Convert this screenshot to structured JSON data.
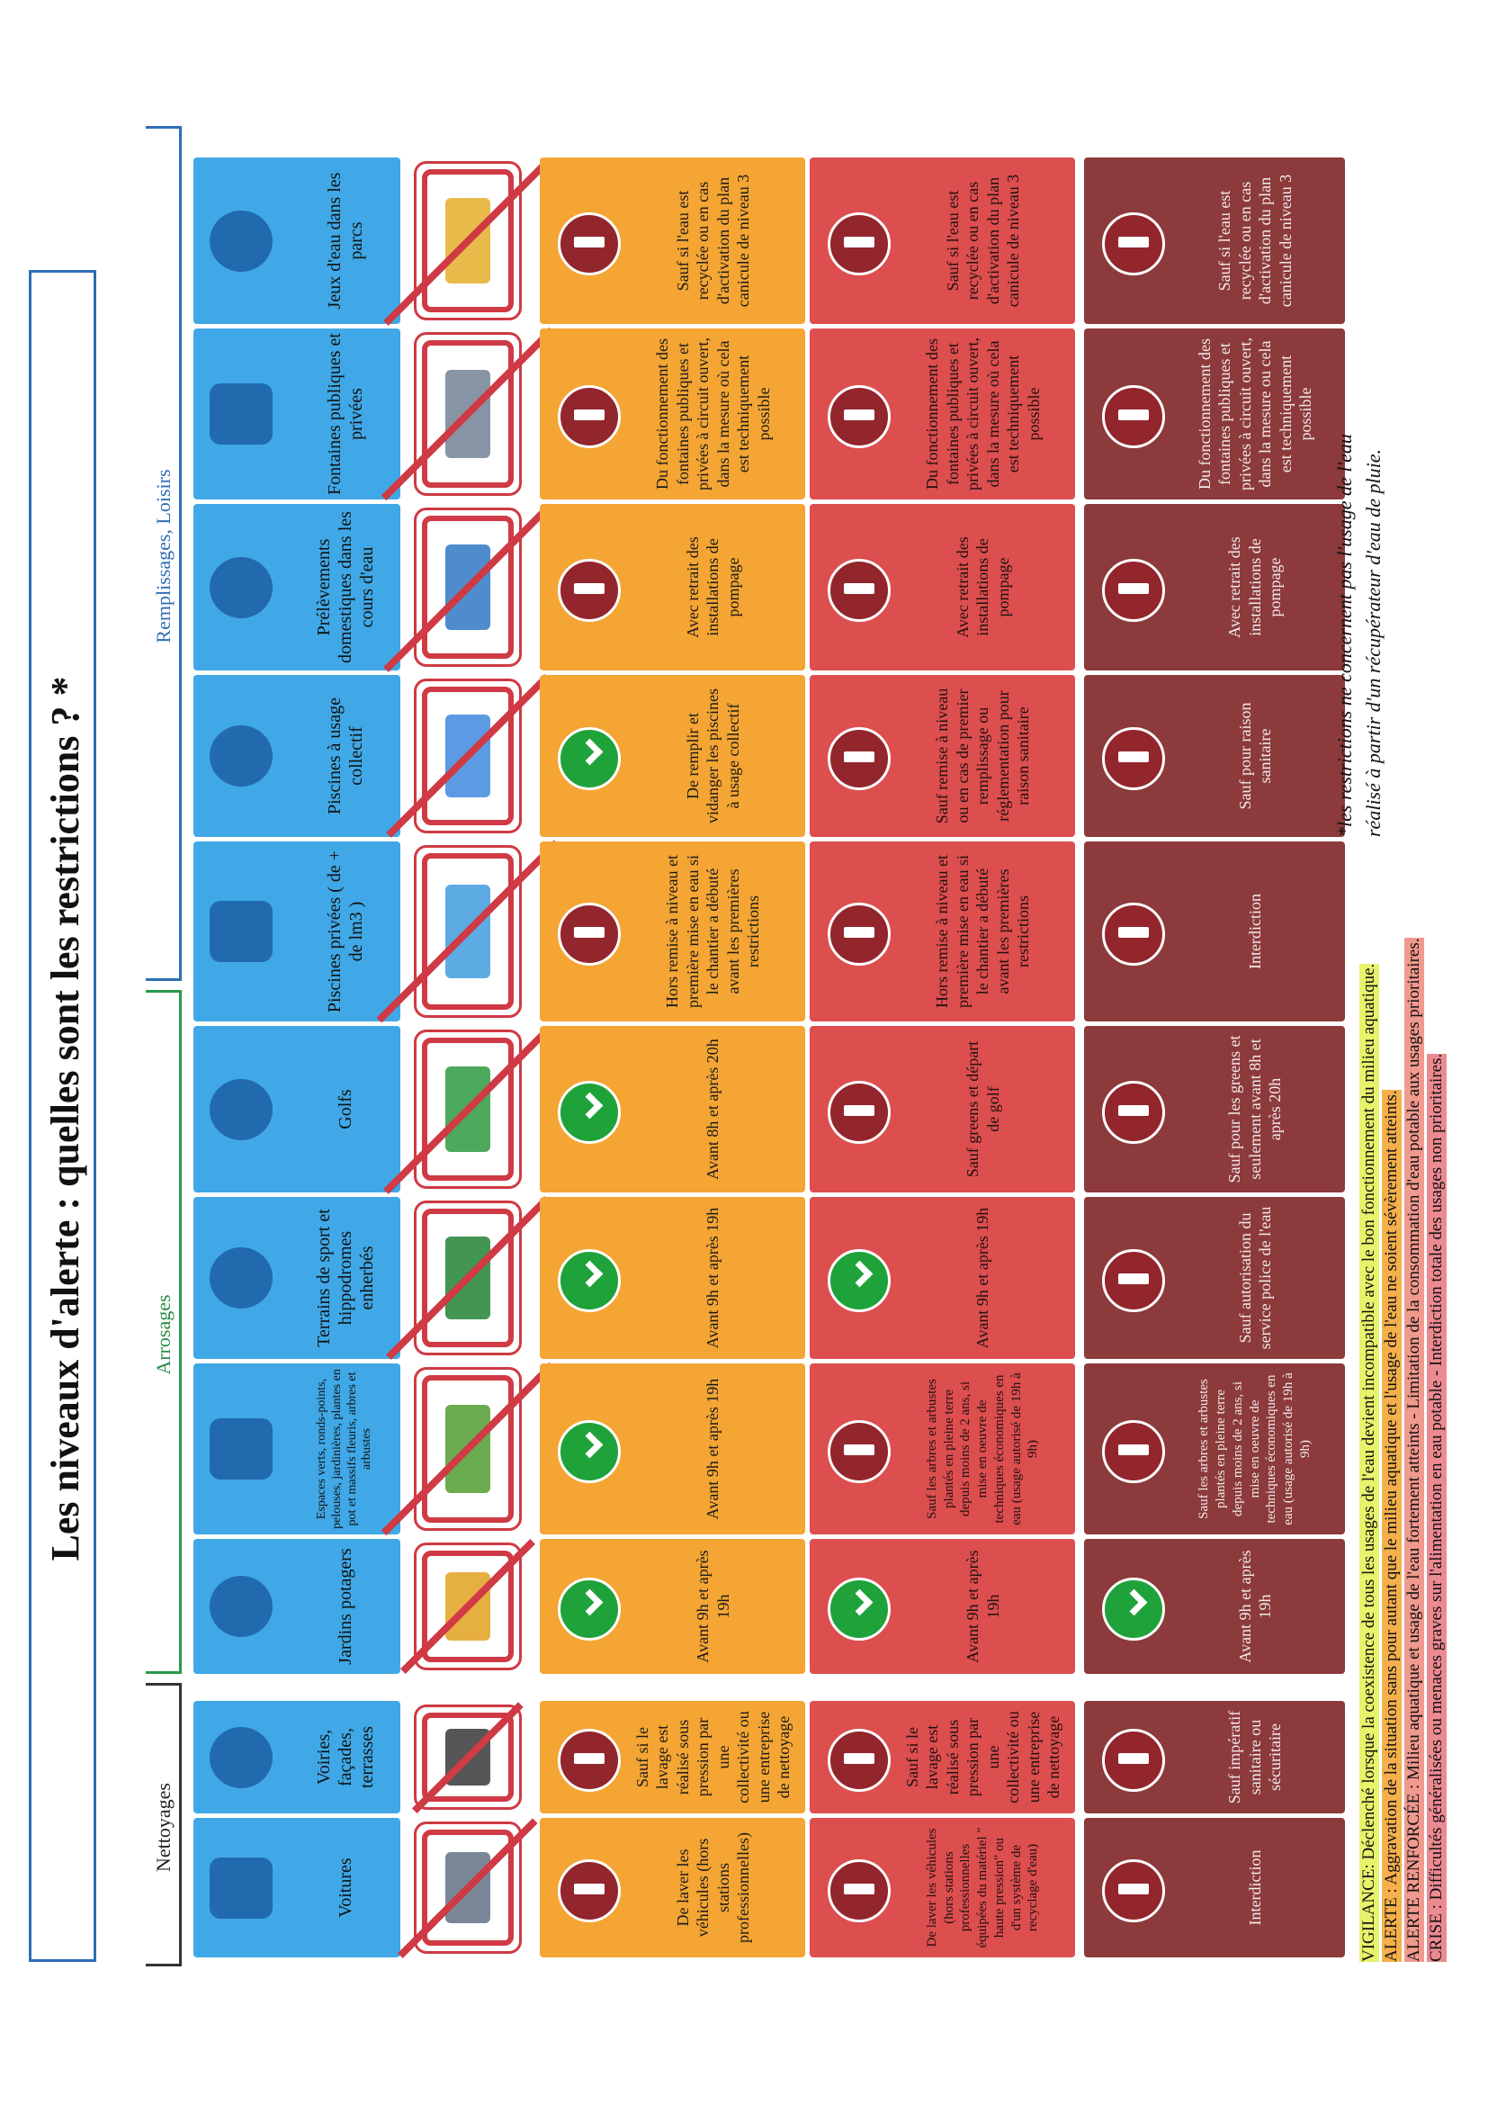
{
  "title": "Les niveaux d'alerte : quelles sont les restrictions ? *",
  "groups": {
    "nettoyages": "Nettoyages",
    "arrosages": "Arrosages",
    "remplissages": "Remplissages, Loisirs"
  },
  "usages": [
    {
      "label": "Voitures",
      "icon": "car-icon"
    },
    {
      "label": "Voiries, façades, terrasses",
      "icon": "house-icon"
    },
    {
      "label": "Jardins potagers",
      "icon": "watering-can-icon"
    },
    {
      "label": "Espaces verts, ronds-points, pelouses, jardinières, plantes en pot et massifs fleuris, arbres et arbustes",
      "icon": "sprinkler-plants-icon"
    },
    {
      "label": "Terrains de sport et hippodromes enherbés",
      "icon": "sports-field-icon"
    },
    {
      "label": "Golfs",
      "icon": "golf-icon"
    },
    {
      "label": "Piscines privées ( de + de lm3 )",
      "icon": "swimmer-icon"
    },
    {
      "label": "Piscines à usage collectif",
      "icon": "pool-icon"
    },
    {
      "label": "Prélèvements domestiques dans les cours d'eau",
      "icon": "river-pump-icon"
    },
    {
      "label": "Fontaines publiques et privées",
      "icon": "fountain-icon"
    },
    {
      "label": "Jeux d'eau dans les parcs",
      "icon": "park-pond-icon"
    }
  ],
  "levels": {
    "alerte": "ALERTE",
    "renforcee_1": "ALERTE",
    "renforcee_2": "RENFORCÉE",
    "crise": "CRISE"
  },
  "alerte": [
    {
      "symbol": "interdit",
      "text": "De laver les véhicules (hors stations professionnelles)"
    },
    {
      "symbol": "interdit",
      "text": "Sauf si le lavage est réalisé sous pression par une collectivité ou une entreprise de nettoyage"
    },
    {
      "symbol": "autorise",
      "text": "Avant 9h et après 19h"
    },
    {
      "symbol": "autorise",
      "text": "Avant 9h et après 19h"
    },
    {
      "symbol": "autorise",
      "text": "Avant 9h et après 19h"
    },
    {
      "symbol": "autorise",
      "text": "Avant 8h et après 20h"
    },
    {
      "symbol": "interdit",
      "text": "Hors remise à niveau et première mise en eau si le chantier a débuté avant les premières restrictions"
    },
    {
      "symbol": "autorise",
      "text": "De remplir et vidanger les piscines à usage collectif"
    },
    {
      "symbol": "interdit",
      "text": "Avec retrait des installations de pompage"
    },
    {
      "symbol": "interdit",
      "text": "Du fonctionnement des fontaines publiques et privées à circuit ouvert, dans la mesure où cela est techniquement possible"
    },
    {
      "symbol": "interdit",
      "text": "Sauf si l'eau est recyclée ou en cas d'activation du plan canicule de niveau 3"
    }
  ],
  "renforcee": [
    {
      "symbol": "interdit",
      "text": "De laver les véhicules (hors stations professionnelles équipées du matériel \" haute pression\" ou d'un système de recyclage d'eau)"
    },
    {
      "symbol": "interdit",
      "text": "Sauf si le lavage est réalisé sous pression par une collectivité ou une entreprise de nettoyage"
    },
    {
      "symbol": "autorise",
      "text": "Avant 9h et après 19h"
    },
    {
      "symbol": "interdit",
      "text": "Sauf les arbres et arbustes plantés en pleine terre depuis moins de 2 ans, si mise en oeuvre de techniques économiques en eau (usage autorisé de 19h à 9h)"
    },
    {
      "symbol": "autorise",
      "text": "Avant 9h et après 19h"
    },
    {
      "symbol": "interdit",
      "text": "Sauf greens et départ de golf"
    },
    {
      "symbol": "interdit",
      "text": "Hors remise à niveau et première mise en eau si le chantier a débuté avant les premières restrictions"
    },
    {
      "symbol": "interdit",
      "text": "Sauf remise à niveau ou en cas de premier remplissage ou réglementation pour raison sanitaire"
    },
    {
      "symbol": "interdit",
      "text": "Avec retrait des installations de pompage"
    },
    {
      "symbol": "interdit",
      "text": "Du fonctionnement des fontaines publiques et privées à circuit ouvert, dans la mesure où cela est techniquement possible"
    },
    {
      "symbol": "interdit",
      "text": "Sauf si l'eau est recyclée ou en cas d'activation du plan canicule de niveau 3"
    }
  ],
  "crise": [
    {
      "symbol": "interdit",
      "text": "Interdiction"
    },
    {
      "symbol": "interdit",
      "text": "Sauf impératif sanitaire ou sécuritaire"
    },
    {
      "symbol": "autorise",
      "text": "Avant 9h et après 19h"
    },
    {
      "symbol": "interdit",
      "text": "Sauf les arbres et arbustes plantés en pleine terre depuis moins de 2 ans, si mise en oeuvre de techniques économiques en eau (usage autorisé de 19h à 9h)"
    },
    {
      "symbol": "interdit",
      "text": "Sauf autorisation du service police de l'eau"
    },
    {
      "symbol": "interdit",
      "text": "Sauf pour les greens et seulement avant 8h et après 20h"
    },
    {
      "symbol": "interdit",
      "text": "Interdiction"
    },
    {
      "symbol": "interdit",
      "text": "Sauf pour raison sanitaire"
    },
    {
      "symbol": "interdit",
      "text": "Avec retrait des installations de pompage"
    },
    {
      "symbol": "interdit",
      "text": "Du fonctionnement des fontaines publiques et privées à circuit ouvert, dans la mesure ou cela est techniquement possible"
    },
    {
      "symbol": "interdit",
      "text": "Sauf si l'eau est recyclée ou en cas d'activation du plan canicule de niveau 3"
    }
  ],
  "legend": {
    "vigilance": "VIGILANCE: Déclenché lorsque la coexistence de tous les usages de l'eau devient incompatible avec le bon fonctionnement du milieu aquatique.",
    "alerte": "ALERTE : Aggravation de la situation sans pour autant que le milieu aquatique et l'usage de l'eau ne soient sévèrement atteints.",
    "alerte_renforcee": "ALERTE RENFORCÉE : Milieu aquatique et usage de l'eau fortement atteints - Limitation de la consommation d'eau potable aux usages prioritaires.",
    "crise": "CRISE : Difficultés généralisées ou menaces graves sur l'alimentation en eau potable - Interdiction totale des usages non prioritaires."
  },
  "footnote": {
    "line1": "*les restrictions ne concernent pas l'usage de l'eau",
    "line2": "réalisé à partir d'un récupérateur d'eau de pluie."
  },
  "colors": {
    "header_blue": "#40a8e6",
    "alerte_orange": "#f4a534",
    "renforcee_red": "#dd4e4f",
    "crise_darkred": "#8c3a3b",
    "autorise_green": "#1fa23a",
    "interdit_red": "#93252d"
  }
}
